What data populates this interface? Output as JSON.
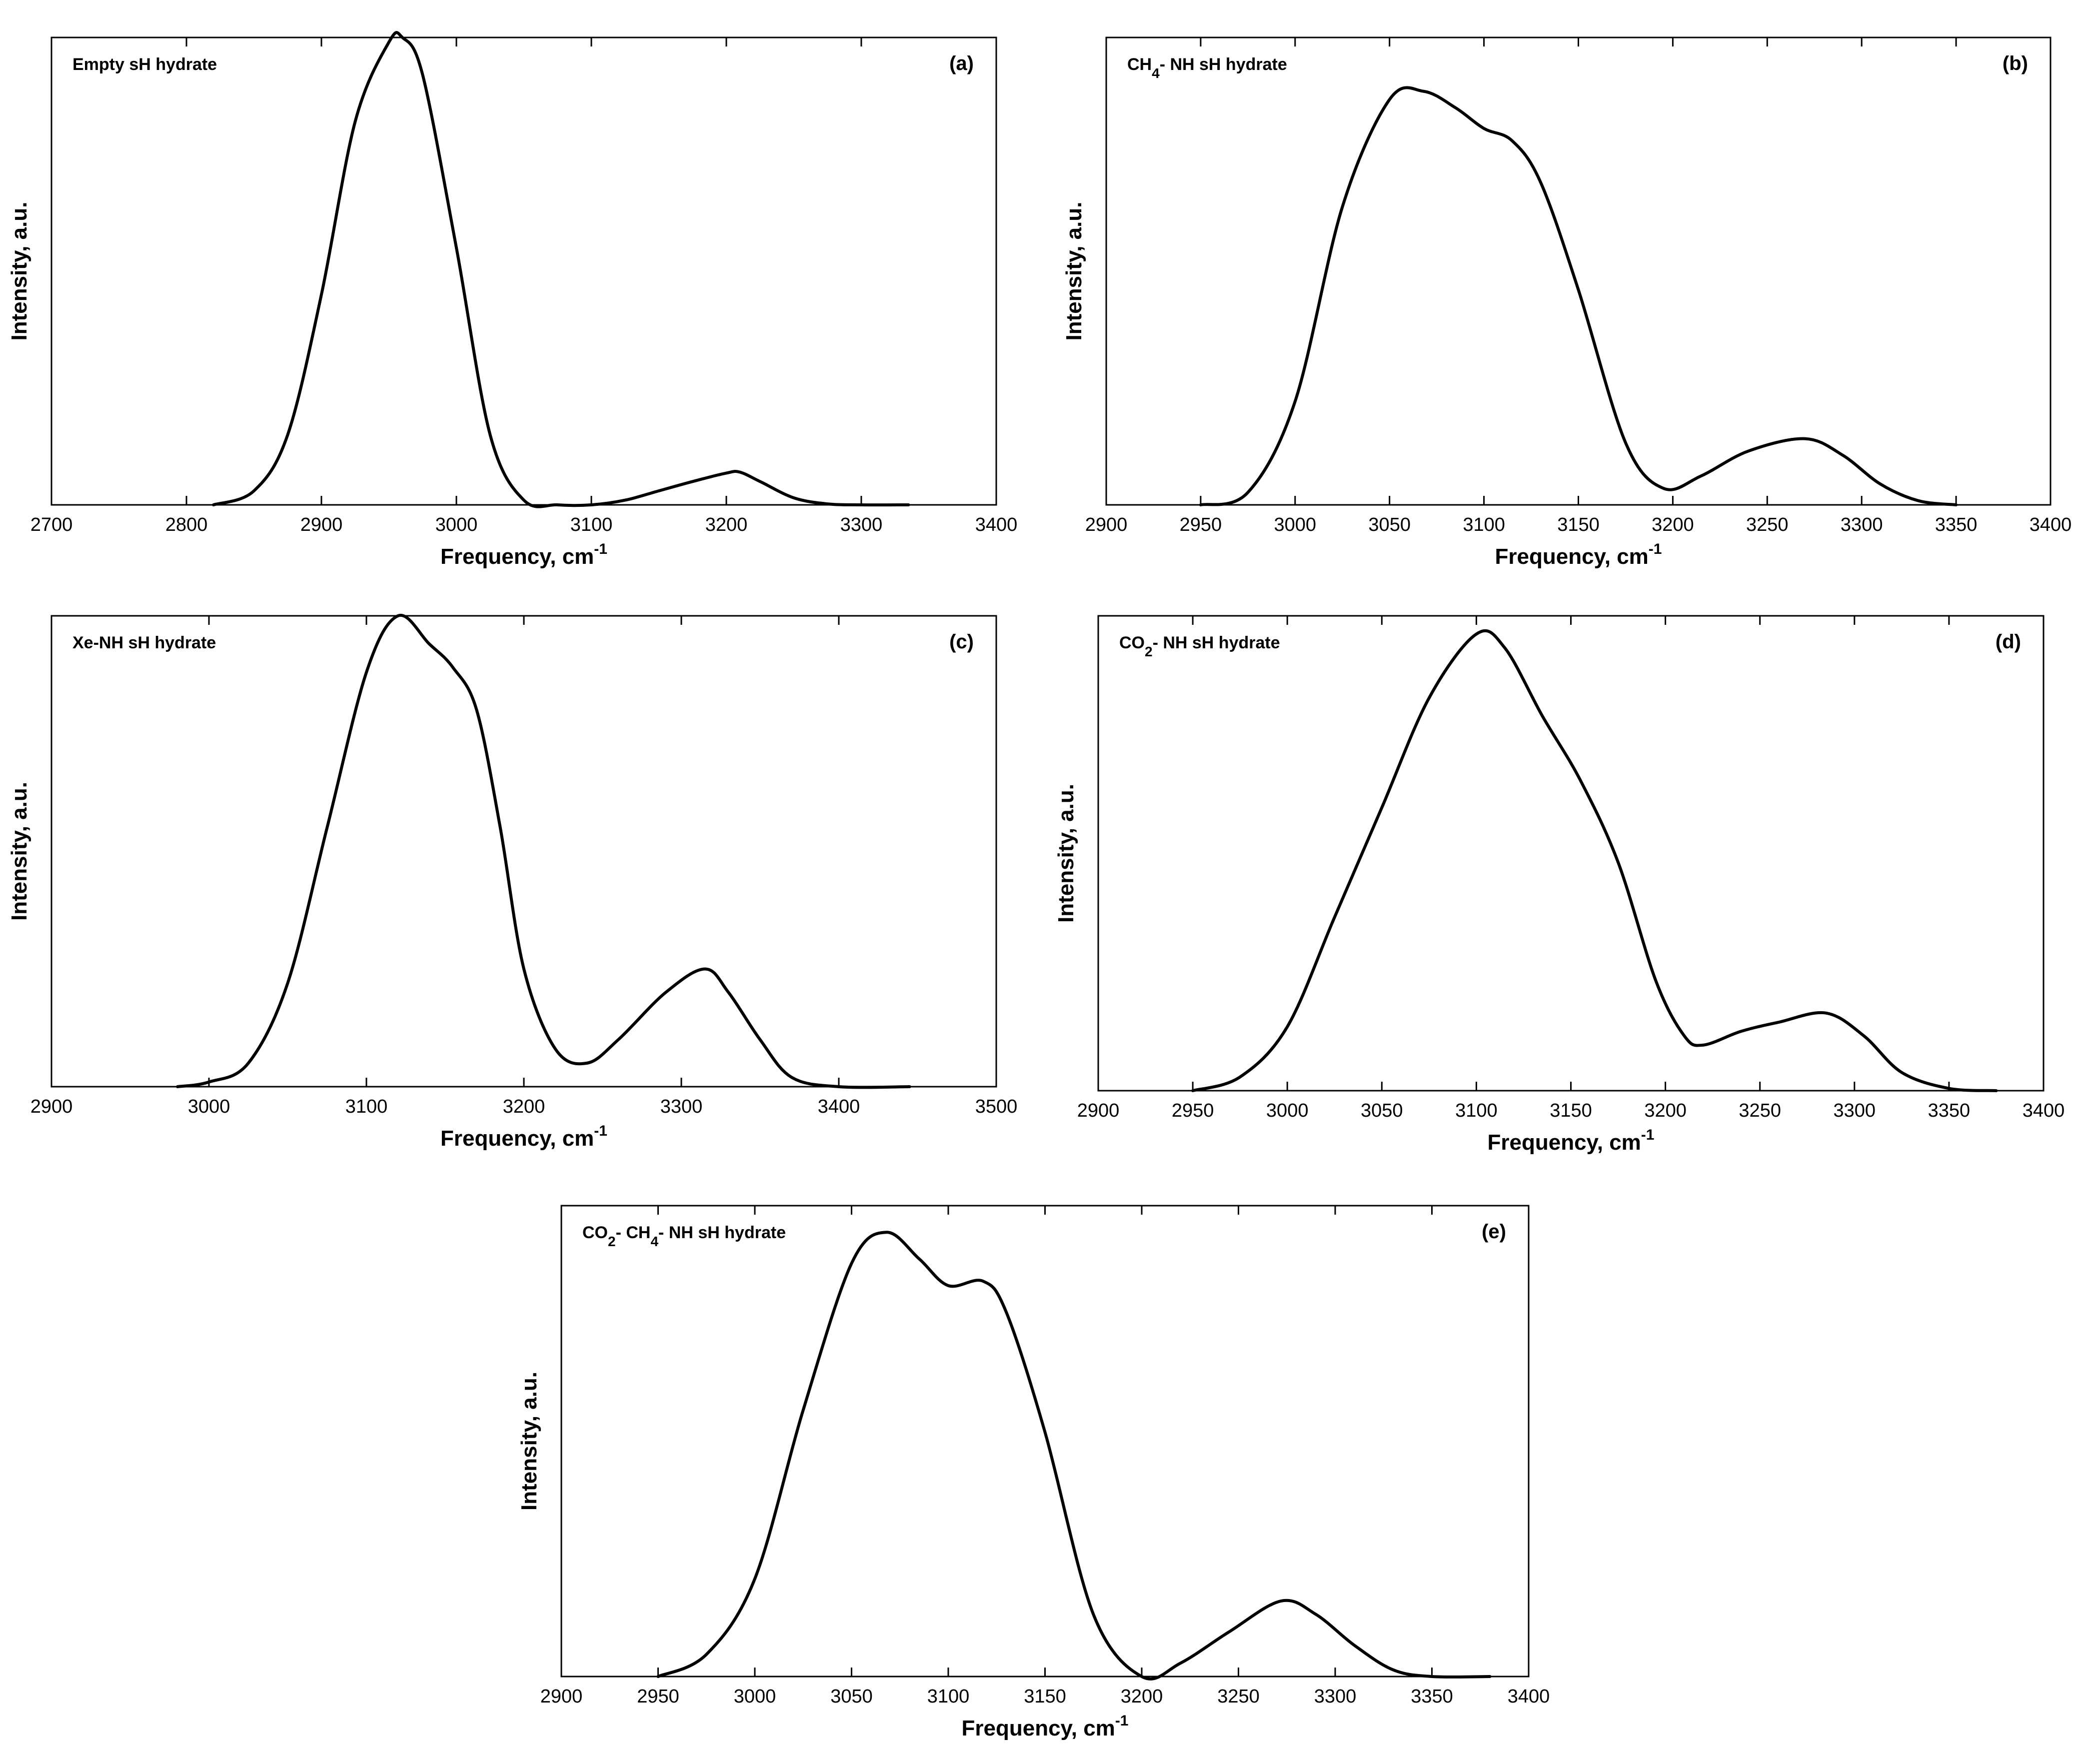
{
  "chart_data": [
    {
      "id": "a",
      "type": "line",
      "panel_label": "(a)",
      "title_parts": [
        {
          "t": "Empty sH hydrate"
        }
      ],
      "xlabel": "Frequency, cm",
      "xlabel_sup": "-1",
      "ylabel": "Intensity, a.u.",
      "xlim": [
        2700,
        3400
      ],
      "ylim": [
        0,
        1.0
      ],
      "xticks": [
        2700,
        2800,
        2900,
        3000,
        3100,
        3200,
        3300,
        3400
      ],
      "series": [
        {
          "name": "Empty sH hydrate",
          "x": [
            2820,
            2850,
            2875,
            2900,
            2925,
            2950,
            2960,
            2975,
            3000,
            3025,
            3050,
            3075,
            3100,
            3125,
            3150,
            3175,
            3200,
            3210,
            3225,
            3250,
            3275,
            3300,
            3335
          ],
          "y": [
            0.0,
            0.03,
            0.15,
            0.45,
            0.82,
            0.99,
            1.0,
            0.92,
            0.55,
            0.15,
            0.01,
            0.0,
            0.0,
            0.01,
            0.03,
            0.05,
            0.068,
            0.07,
            0.05,
            0.015,
            0.002,
            0.0,
            0.0
          ]
        }
      ]
    },
    {
      "id": "b",
      "type": "line",
      "panel_label": "(b)",
      "title_parts": [
        {
          "t": "CH"
        },
        {
          "t": "4",
          "sub": true
        },
        {
          "t": "- NH sH hydrate"
        }
      ],
      "xlabel": "Frequency, cm",
      "xlabel_sup": "-1",
      "ylabel": "Intensity, a.u.",
      "xlim": [
        2900,
        3400
      ],
      "ylim": [
        0,
        1.13
      ],
      "xticks": [
        2900,
        2950,
        3000,
        3050,
        3100,
        3150,
        3200,
        3250,
        3300,
        3350,
        3400
      ],
      "series": [
        {
          "name": "CH4- NH sH hydrate",
          "x": [
            2950,
            2975,
            3000,
            3025,
            3050,
            3068,
            3085,
            3100,
            3115,
            3130,
            3150,
            3175,
            3195,
            3215,
            3240,
            3270,
            3290,
            3310,
            3330,
            3350
          ],
          "y": [
            0.0,
            0.03,
            0.25,
            0.72,
            0.98,
            1.0,
            0.96,
            0.91,
            0.88,
            0.78,
            0.52,
            0.15,
            0.04,
            0.07,
            0.13,
            0.16,
            0.12,
            0.05,
            0.01,
            0.0
          ]
        }
      ]
    },
    {
      "id": "c",
      "type": "line",
      "panel_label": "(c)",
      "title_parts": [
        {
          "t": "Xe-NH sH hydrate"
        }
      ],
      "xlabel": "Frequency, cm",
      "xlabel_sup": "-1",
      "ylabel": "Intensity, a.u.",
      "xlim": [
        2900,
        3500
      ],
      "ylim": [
        0,
        1.0
      ],
      "xticks": [
        2900,
        3000,
        3100,
        3200,
        3300,
        3400,
        3500
      ],
      "series": [
        {
          "name": "Xe-NH sH hydrate",
          "x": [
            2980,
            3000,
            3025,
            3050,
            3075,
            3100,
            3120,
            3140,
            3155,
            3170,
            3185,
            3200,
            3220,
            3240,
            3260,
            3290,
            3315,
            3330,
            3350,
            3370,
            3400,
            3445
          ],
          "y": [
            0.0,
            0.01,
            0.05,
            0.22,
            0.55,
            0.88,
            1.0,
            0.94,
            0.89,
            0.8,
            0.55,
            0.25,
            0.08,
            0.05,
            0.1,
            0.2,
            0.25,
            0.2,
            0.1,
            0.02,
            0.0,
            0.0
          ]
        }
      ]
    },
    {
      "id": "d",
      "type": "line",
      "panel_label": "(d)",
      "title_parts": [
        {
          "t": "CO"
        },
        {
          "t": "2",
          "sub": true
        },
        {
          "t": "- NH sH hydrate"
        }
      ],
      "xlabel": "Frequency, cm",
      "xlabel_sup": "-1",
      "ylabel": "Intensity, a.u.",
      "xlim": [
        2900,
        3400
      ],
      "ylim": [
        0,
        1.04
      ],
      "xticks": [
        2900,
        2950,
        3000,
        3050,
        3100,
        3150,
        3200,
        3250,
        3300,
        3350,
        3400
      ],
      "series": [
        {
          "name": "CO2- NH sH hydrate",
          "x": [
            2950,
            2975,
            3000,
            3025,
            3050,
            3075,
            3100,
            3115,
            3135,
            3155,
            3175,
            3195,
            3210,
            3220,
            3240,
            3260,
            3285,
            3305,
            3325,
            3350,
            3375
          ],
          "y": [
            0.0,
            0.03,
            0.14,
            0.38,
            0.62,
            0.86,
            1.0,
            0.97,
            0.82,
            0.68,
            0.5,
            0.24,
            0.12,
            0.1,
            0.13,
            0.15,
            0.17,
            0.12,
            0.04,
            0.005,
            0.0
          ]
        }
      ]
    },
    {
      "id": "e",
      "type": "line",
      "panel_label": "(e)",
      "title_parts": [
        {
          "t": "CO"
        },
        {
          "t": "2",
          "sub": true
        },
        {
          "t": "- CH"
        },
        {
          "t": "4",
          "sub": true
        },
        {
          "t": "- NH sH hydrate"
        }
      ],
      "xlabel": "Frequency, cm",
      "xlabel_sup": "-1",
      "ylabel": "Intensity, a.u.",
      "xlim": [
        2900,
        3400
      ],
      "ylim": [
        0,
        1.06
      ],
      "xticks": [
        2900,
        2950,
        3000,
        3050,
        3100,
        3150,
        3200,
        3250,
        3300,
        3350,
        3400
      ],
      "series": [
        {
          "name": "CO2- CH4- NH sH hydrate",
          "x": [
            2950,
            2975,
            3000,
            3025,
            3050,
            3068,
            3085,
            3100,
            3118,
            3130,
            3150,
            3175,
            3200,
            3220,
            3245,
            3272,
            3290,
            3310,
            3330,
            3350,
            3380
          ],
          "y": [
            0.0,
            0.05,
            0.22,
            0.6,
            0.93,
            1.0,
            0.94,
            0.88,
            0.89,
            0.82,
            0.55,
            0.14,
            0.0,
            0.03,
            0.1,
            0.17,
            0.14,
            0.07,
            0.015,
            0.0,
            0.0
          ]
        }
      ]
    }
  ]
}
